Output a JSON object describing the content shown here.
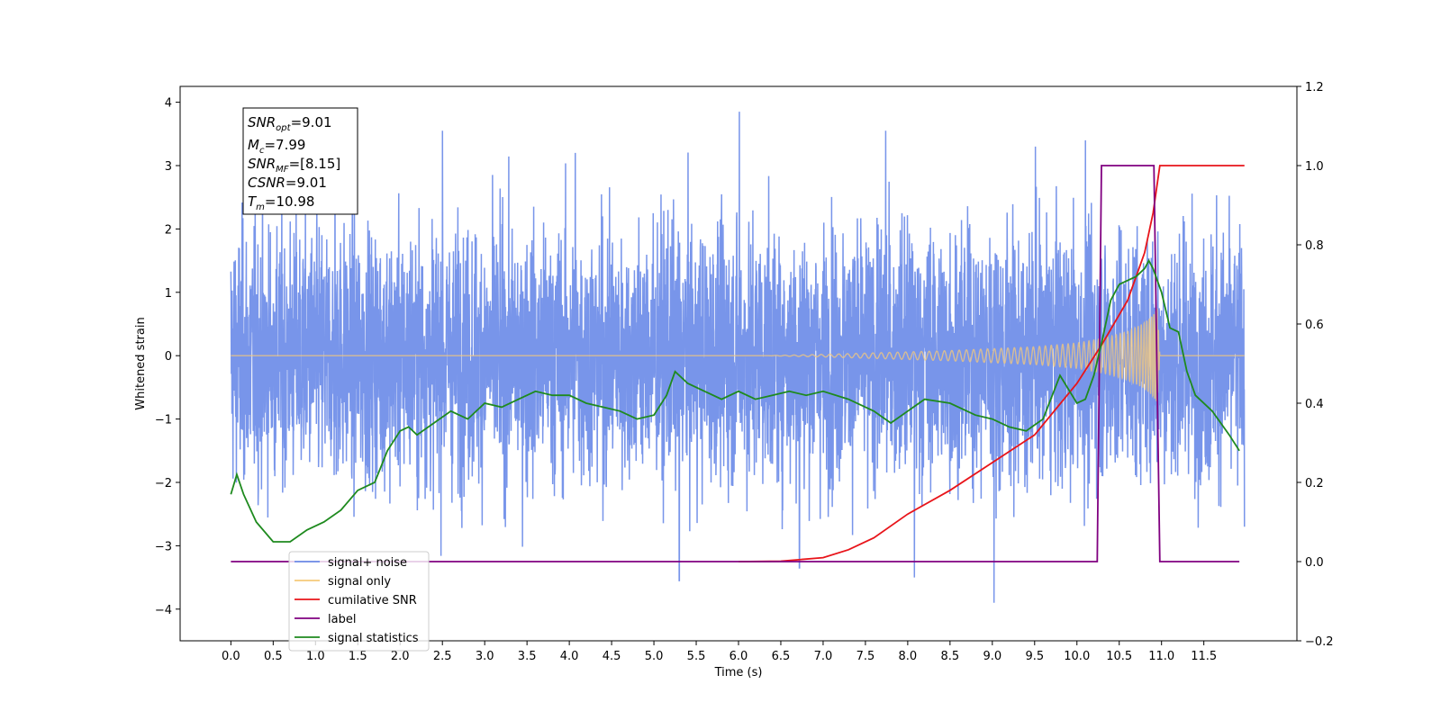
{
  "chart_data": {
    "type": "line",
    "xlabel": "Time (s)",
    "ylabel": "Whitened strain",
    "xlim": [
      -0.6,
      12.6
    ],
    "ylim": [
      -4.5,
      4.25
    ],
    "y2lim": [
      -0.2,
      1.2
    ],
    "x_ticks": [
      "0.0",
      "0.5",
      "1.0",
      "1.5",
      "2.0",
      "2.5",
      "3.0",
      "3.5",
      "4.0",
      "4.5",
      "5.0",
      "5.5",
      "6.0",
      "6.5",
      "7.0",
      "7.5",
      "8.0",
      "8.5",
      "9.0",
      "9.5",
      "10.0",
      "10.5",
      "11.0",
      "11.5"
    ],
    "y_ticks": [
      "4",
      "3",
      "2",
      "1",
      "0",
      "−1",
      "−2",
      "−3",
      "−4"
    ],
    "y2_ticks": [
      "1.2",
      "1.0",
      "0.8",
      "0.6",
      "0.4",
      "0.2",
      "0.0",
      "−0.2"
    ],
    "annotation": {
      "snr_opt": "=9.01",
      "mc": "=7.99",
      "snr_mf": "=[8.15]",
      "csnr_label": "CSNR",
      "csnr": "=9.01",
      "tm": "=10.98"
    },
    "legend_position": "lower-left",
    "legend": [
      {
        "label": "signal+ noise",
        "color": "#6d8ce8"
      },
      {
        "label": "signal only",
        "color": "#f5c97a"
      },
      {
        "label": "cumilative SNR",
        "color": "#e8141a"
      },
      {
        "label": "label",
        "color": "#800080"
      },
      {
        "label": "signal statistics",
        "color": "#1e8a1e"
      }
    ],
    "series": [
      {
        "name": "signal+ noise",
        "axis": "left",
        "color": "#6d8ce8",
        "x_range": [
          0.0,
          11.98
        ],
        "envelope_mean": 0.0,
        "envelope_std": 1.0,
        "peak_points": {
          "x": [
            1.23,
            2.5,
            4.07,
            6.01,
            7.74,
            9.51,
            10.1,
            11.98,
            5.3,
            9.02,
            8.08,
            6.72,
            11.98
          ],
          "y": [
            3.3,
            3.55,
            3.2,
            3.85,
            3.55,
            3.3,
            3.4,
            3.6,
            -3.55,
            -3.9,
            -3.5,
            -3.35,
            -2.7
          ]
        }
      },
      {
        "name": "signal only",
        "axis": "left",
        "color": "#f5c97a",
        "chirp_start": 6.3,
        "merger_time": 10.98,
        "amplitude_points": {
          "x": [
            6.3,
            7.0,
            7.5,
            8.0,
            8.5,
            9.0,
            9.5,
            10.0,
            10.3,
            10.6,
            10.8,
            10.9,
            10.95,
            10.98,
            11.0,
            11.98
          ],
          "y": [
            0.0,
            0.02,
            0.04,
            0.06,
            0.08,
            0.11,
            0.14,
            0.2,
            0.27,
            0.38,
            0.52,
            0.64,
            0.75,
            0.0,
            0.0,
            0.0
          ]
        }
      },
      {
        "name": "cumilative SNR",
        "axis": "right",
        "color": "#e8141a",
        "x": [
          6.0,
          6.5,
          7.0,
          7.3,
          7.6,
          8.0,
          8.5,
          9.0,
          9.5,
          10.0,
          10.3,
          10.6,
          10.8,
          10.9,
          10.98,
          11.5,
          11.98
        ],
        "y": [
          0.0,
          0.001,
          0.01,
          0.03,
          0.06,
          0.12,
          0.18,
          0.25,
          0.32,
          0.45,
          0.55,
          0.66,
          0.78,
          0.88,
          1.0,
          1.0,
          1.0
        ]
      },
      {
        "name": "label",
        "axis": "right",
        "color": "#800080",
        "x": [
          0.0,
          10.24,
          10.29,
          10.91,
          10.98,
          11.92
        ],
        "y": [
          0.0,
          0.0,
          1.0,
          1.0,
          0.0,
          0.0
        ]
      },
      {
        "name": "signal statistics",
        "axis": "right",
        "color": "#1e8a1e",
        "x": [
          0.0,
          0.07,
          0.15,
          0.3,
          0.5,
          0.7,
          0.9,
          1.1,
          1.3,
          1.5,
          1.7,
          1.85,
          2.0,
          2.1,
          2.2,
          2.4,
          2.6,
          2.8,
          3.0,
          3.2,
          3.4,
          3.6,
          3.8,
          4.0,
          4.2,
          4.4,
          4.6,
          4.8,
          5.0,
          5.15,
          5.25,
          5.4,
          5.6,
          5.8,
          6.0,
          6.2,
          6.4,
          6.6,
          6.8,
          7.0,
          7.3,
          7.6,
          7.8,
          8.0,
          8.2,
          8.5,
          8.8,
          9.0,
          9.2,
          9.4,
          9.6,
          9.8,
          10.0,
          10.1,
          10.2,
          10.3,
          10.4,
          10.5,
          10.6,
          10.7,
          10.8,
          10.85,
          10.9,
          11.0,
          11.1,
          11.2,
          11.3,
          11.4,
          11.6,
          11.8,
          11.92
        ],
        "y": [
          0.17,
          0.22,
          0.17,
          0.1,
          0.05,
          0.05,
          0.08,
          0.1,
          0.13,
          0.18,
          0.2,
          0.28,
          0.33,
          0.34,
          0.32,
          0.35,
          0.38,
          0.36,
          0.4,
          0.39,
          0.41,
          0.43,
          0.42,
          0.42,
          0.4,
          0.39,
          0.38,
          0.36,
          0.37,
          0.42,
          0.48,
          0.45,
          0.43,
          0.41,
          0.43,
          0.41,
          0.42,
          0.43,
          0.42,
          0.43,
          0.41,
          0.38,
          0.35,
          0.38,
          0.41,
          0.4,
          0.37,
          0.36,
          0.34,
          0.33,
          0.36,
          0.47,
          0.4,
          0.41,
          0.47,
          0.56,
          0.66,
          0.7,
          0.71,
          0.72,
          0.74,
          0.76,
          0.74,
          0.68,
          0.59,
          0.58,
          0.48,
          0.42,
          0.38,
          0.32,
          0.28
        ]
      }
    ]
  }
}
